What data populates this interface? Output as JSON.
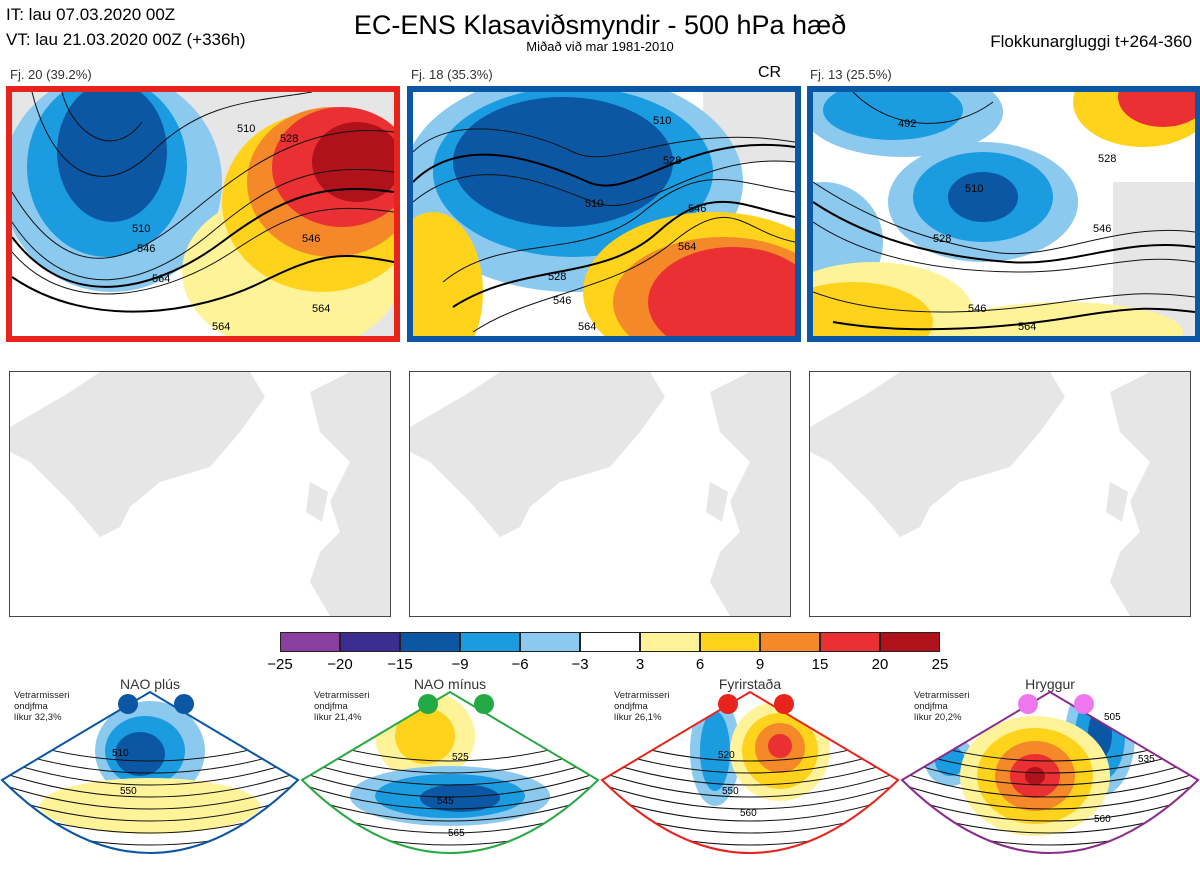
{
  "header": {
    "it_line": "IT: lau 07.03.2020 00Z",
    "vt_line": "VT: lau 21.03.2020 00Z  (+336h)",
    "title": "EC-ENS Klasaviðsmyndir - 500 hPa hæð",
    "subtitle": "Miðað við mar 1981-2010",
    "window": "Flokkunargluggi t+264-360"
  },
  "panels": [
    {
      "label": "Fj. 20 (39.2%)",
      "border_color": "#e8231c",
      "contours": [
        "510",
        "510",
        "546",
        "564",
        "528",
        "546",
        "564",
        "564"
      ]
    },
    {
      "label": "Fj. 18 (35.3%)",
      "border_color": "#0b57a4",
      "tag": "CR",
      "contours": [
        "510",
        "528",
        "510",
        "546",
        "564",
        "528",
        "546",
        "564"
      ]
    },
    {
      "label": "Fj. 13 (25.5%)",
      "border_color": "#0b57a4",
      "contours": [
        "492",
        "510",
        "528",
        "528",
        "546",
        "546",
        "564"
      ]
    }
  ],
  "colorbar": {
    "colors": [
      "#8a3fa0",
      "#3a2d8f",
      "#0b57a4",
      "#1b9be0",
      "#8cc9ef",
      "#ffffff",
      "#fff39a",
      "#ffd21c",
      "#f5892a",
      "#ea3033",
      "#b0121b"
    ],
    "ticks": [
      "−25",
      "−20",
      "−15",
      "−9",
      "−6",
      "−3",
      "3",
      "6",
      "9",
      "15",
      "20",
      "25"
    ]
  },
  "regimes": [
    {
      "name": "NAO plús",
      "info": [
        "Vetrarmisseri",
        "ondjfma",
        "líkur 32,3%"
      ],
      "dot_color": "#0b57a4",
      "border_color": "#0b57a4",
      "labels": [
        "510",
        "550"
      ]
    },
    {
      "name": "NAO mínus",
      "info": [
        "Vetrarmisseri",
        "ondjfma",
        "líkur 21,4%"
      ],
      "dot_color": "#22aa44",
      "border_color": "#2aa845",
      "labels": [
        "525",
        "545",
        "565"
      ]
    },
    {
      "name": "Fyrirstaða",
      "info": [
        "Vetrarmisseri",
        "ondjfma",
        "líkur 26,1%"
      ],
      "dot_color": "#e8231c",
      "border_color": "#e8231c",
      "labels": [
        "520",
        "550",
        "560"
      ]
    },
    {
      "name": "Hryggur",
      "info": [
        "Vetrarmisseri",
        "ondjfma",
        "líkur 20,2%"
      ],
      "dot_color": "#ee77ee",
      "border_color": "#8b2c8b",
      "labels": [
        "505",
        "535",
        "560"
      ]
    }
  ]
}
